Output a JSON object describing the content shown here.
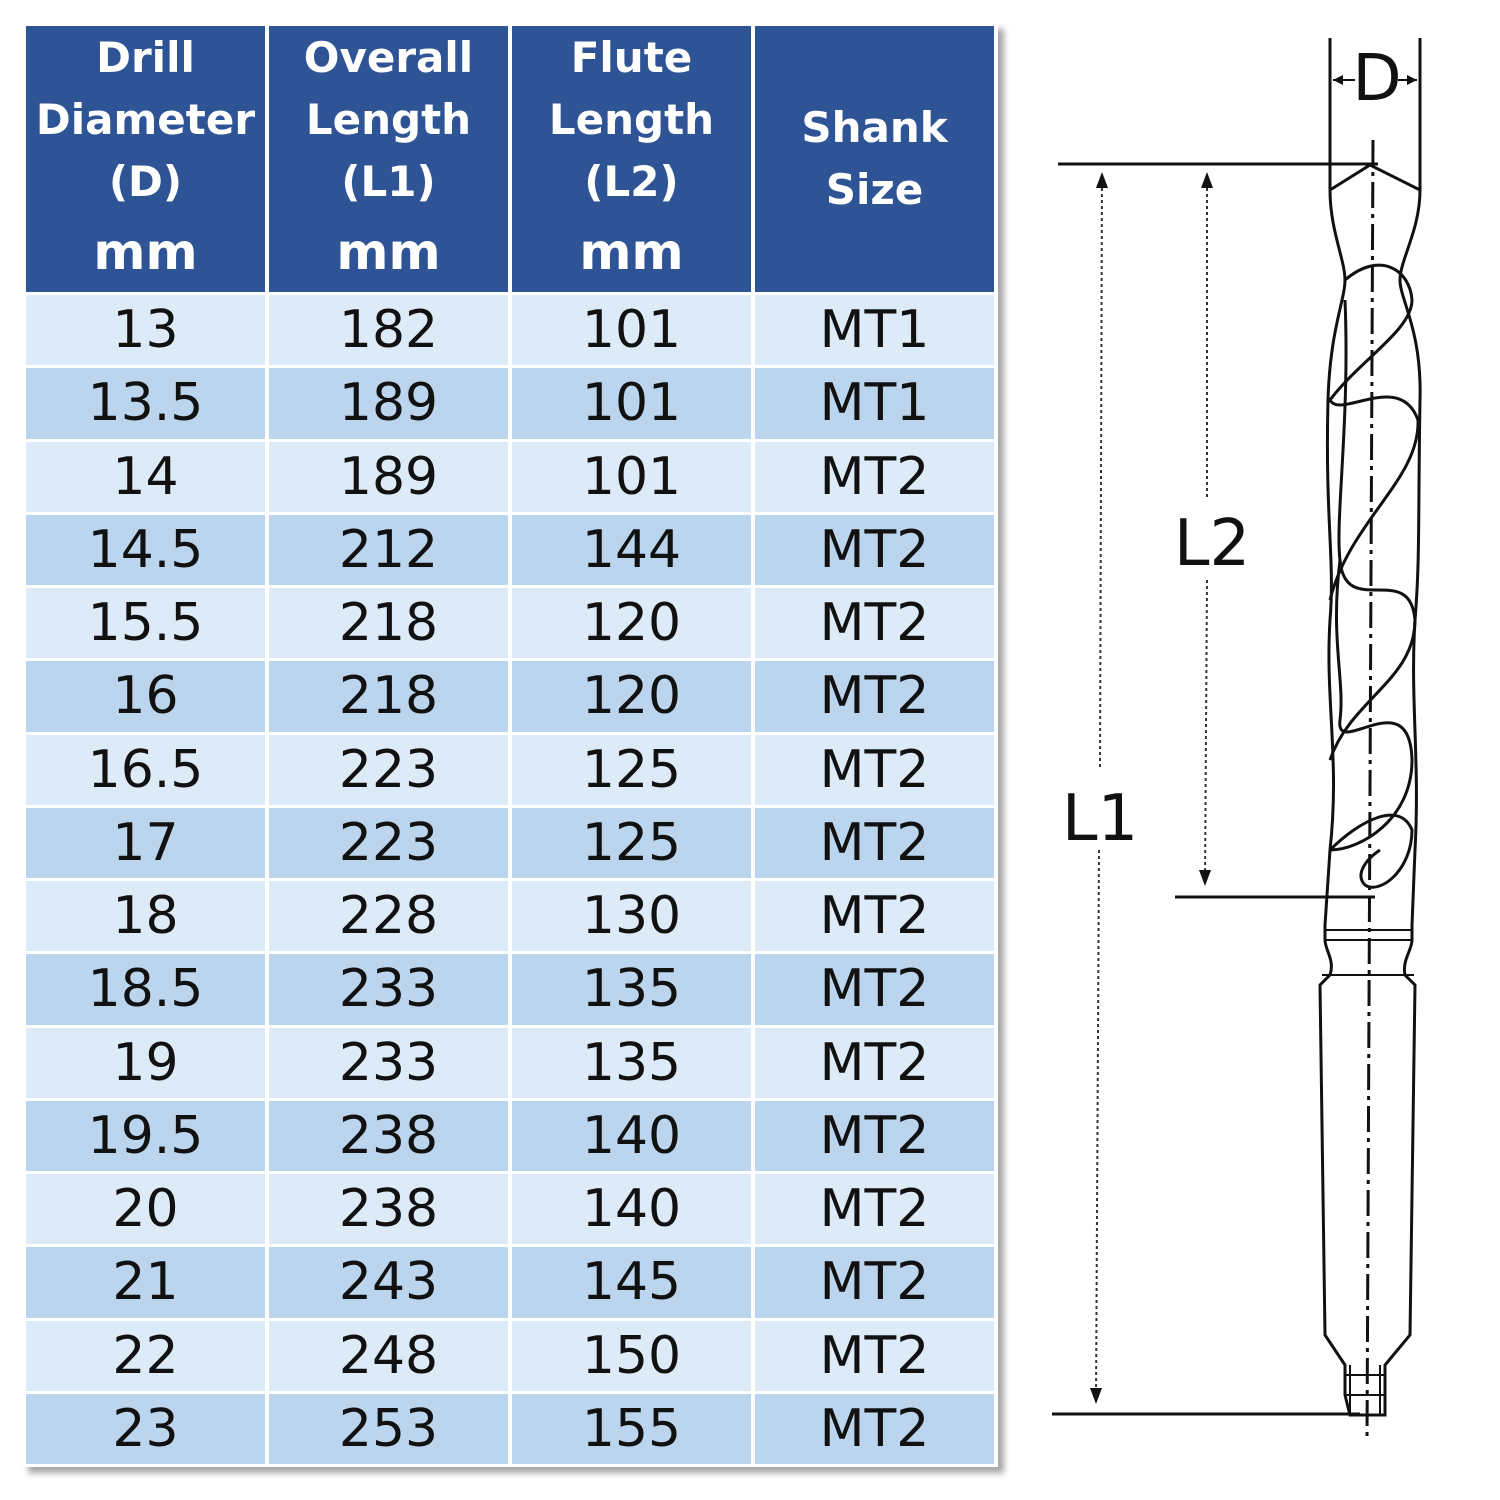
{
  "table": {
    "headers": [
      {
        "lines": [
          "Drill",
          "Diameter",
          "(D)"
        ],
        "unit": "mm"
      },
      {
        "lines": [
          "Overall",
          "Length",
          "(L1)"
        ],
        "unit": "mm"
      },
      {
        "lines": [
          "Flute",
          "Length",
          "(L2)"
        ],
        "unit": "mm"
      },
      {
        "lines": [
          "Shank",
          "Size"
        ],
        "unit": ""
      }
    ],
    "rows": [
      [
        "13",
        "182",
        "101",
        "MT1"
      ],
      [
        "13.5",
        "189",
        "101",
        "MT1"
      ],
      [
        "14",
        "189",
        "101",
        "MT2"
      ],
      [
        "14.5",
        "212",
        "144",
        "MT2"
      ],
      [
        "15.5",
        "218",
        "120",
        "MT2"
      ],
      [
        "16",
        "218",
        "120",
        "MT2"
      ],
      [
        "16.5",
        "223",
        "125",
        "MT2"
      ],
      [
        "17",
        "223",
        "125",
        "MT2"
      ],
      [
        "18",
        "228",
        "130",
        "MT2"
      ],
      [
        "18.5",
        "233",
        "135",
        "MT2"
      ],
      [
        "19",
        "233",
        "135",
        "MT2"
      ],
      [
        "19.5",
        "238",
        "140",
        "MT2"
      ],
      [
        "20",
        "238",
        "140",
        "MT2"
      ],
      [
        "21",
        "243",
        "145",
        "MT2"
      ],
      [
        "22",
        "248",
        "150",
        "MT2"
      ],
      [
        "23",
        "253",
        "155",
        "MT2"
      ]
    ]
  },
  "diagram": {
    "label_d": "D",
    "label_l1": "L1",
    "label_l2": "L2"
  },
  "colors": {
    "header_bg": "#2f5496",
    "row_light": "#ddeaf7",
    "row_dark": "#bcd5ee"
  }
}
